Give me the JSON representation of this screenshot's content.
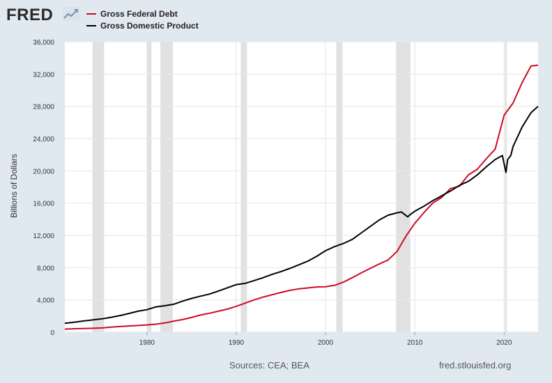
{
  "header": {
    "logo_text": "FRED"
  },
  "legend": [
    {
      "label": "Gross Federal Debt",
      "color": "#cc0a24"
    },
    {
      "label": "Gross Domestic Product",
      "color": "#000000"
    }
  ],
  "footer": {
    "source": "Sources: CEA; BEA",
    "site": "fred.stlouisfed.org"
  },
  "chart_data": {
    "type": "line",
    "ylabel": "Billions of Dollars",
    "ylim": [
      0,
      36000
    ],
    "xlim": [
      1970.8,
      2023.8
    ],
    "yticks": [
      "0",
      "4,000",
      "8,000",
      "12,000",
      "16,000",
      "20,000",
      "24,000",
      "28,000",
      "32,000",
      "36,000"
    ],
    "ytick_values": [
      0,
      4000,
      8000,
      12000,
      16000,
      20000,
      24000,
      28000,
      32000,
      36000
    ],
    "xticks": [
      "1980",
      "1990",
      "2000",
      "2010",
      "2020"
    ],
    "xtick_values": [
      1980,
      1990,
      2000,
      2010,
      2020
    ],
    "grid": true,
    "recessions": [
      [
        1973.9,
        1975.2
      ],
      [
        1980.0,
        1980.5
      ],
      [
        1981.5,
        1982.9
      ],
      [
        1990.5,
        1991.2
      ],
      [
        2001.2,
        2001.9
      ],
      [
        2007.9,
        2009.5
      ],
      [
        2020.1,
        2020.3
      ]
    ],
    "series": [
      {
        "name": "Gross Federal Debt",
        "color": "#cc0a24",
        "x": [
          1970.8,
          1972,
          1973,
          1974,
          1975,
          1976,
          1977,
          1978,
          1979,
          1980,
          1981,
          1982,
          1983,
          1984,
          1985,
          1986,
          1987,
          1988,
          1989,
          1990,
          1991,
          1992,
          1993,
          1994,
          1995,
          1996,
          1997,
          1998,
          1999,
          2000,
          2001,
          2002,
          2003,
          2004,
          2005,
          2006,
          2007,
          2008,
          2009,
          2010,
          2011,
          2012,
          2013,
          2014,
          2015,
          2016,
          2017,
          2018,
          2019,
          2020,
          2021,
          2022,
          2023,
          2023.8
        ],
        "y": [
          380,
          430,
          460,
          480,
          530,
          620,
          700,
          770,
          830,
          900,
          990,
          1140,
          1370,
          1560,
          1820,
          2120,
          2350,
          2600,
          2860,
          3200,
          3600,
          4000,
          4350,
          4640,
          4920,
          5180,
          5370,
          5480,
          5600,
          5630,
          5800,
          6200,
          6760,
          7350,
          7900,
          8450,
          8950,
          10000,
          11900,
          13500,
          14800,
          16000,
          16700,
          17800,
          18100,
          19500,
          20200,
          21500,
          22700,
          26900,
          28400,
          30900,
          33000,
          33100
        ]
      },
      {
        "name": "Gross Domestic Product",
        "color": "#000000",
        "x": [
          1970.8,
          1972,
          1973,
          1974,
          1975,
          1976,
          1977,
          1978,
          1979,
          1980,
          1981,
          1982,
          1983,
          1984,
          1985,
          1986,
          1987,
          1988,
          1989,
          1990,
          1991,
          1992,
          1993,
          1994,
          1995,
          1996,
          1997,
          1998,
          1999,
          2000,
          2001,
          2002,
          2003,
          2004,
          2005,
          2006,
          2007,
          2008,
          2008.5,
          2009.2,
          2009.5,
          2010,
          2011,
          2012,
          2013,
          2014,
          2015,
          2016,
          2017,
          2018,
          2019,
          2019.8,
          2020.2,
          2020.4,
          2020.75,
          2021,
          2022,
          2023,
          2023.8
        ],
        "y": [
          1100,
          1250,
          1400,
          1530,
          1660,
          1850,
          2060,
          2320,
          2600,
          2790,
          3130,
          3280,
          3460,
          3850,
          4190,
          4460,
          4720,
          5100,
          5500,
          5900,
          6050,
          6400,
          6750,
          7160,
          7500,
          7900,
          8350,
          8800,
          9400,
          10100,
          10600,
          11000,
          11500,
          12300,
          13100,
          13900,
          14500,
          14800,
          14900,
          14300,
          14600,
          15000,
          15600,
          16300,
          16900,
          17500,
          18200,
          18700,
          19500,
          20500,
          21400,
          21900,
          19800,
          21400,
          21900,
          23000,
          25400,
          27200,
          28000
        ]
      }
    ]
  }
}
